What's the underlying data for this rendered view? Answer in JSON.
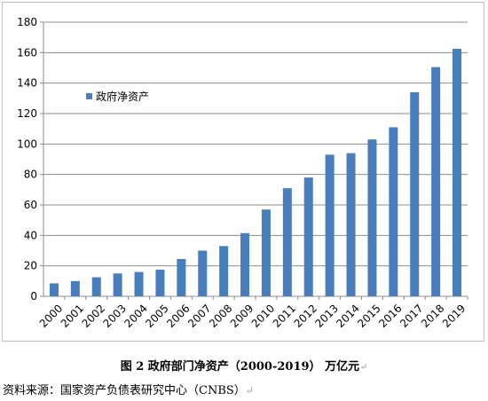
{
  "chart_data": {
    "type": "bar",
    "categories": [
      "2000",
      "2001",
      "2002",
      "2003",
      "2004",
      "2005",
      "2006",
      "2007",
      "2008",
      "2009",
      "2010",
      "2011",
      "2012",
      "2013",
      "2014",
      "2015",
      "2016",
      "2017",
      "2018",
      "2019"
    ],
    "series": [
      {
        "name": "政府净资产",
        "color": "#4a7ebb",
        "values": [
          8.5,
          10,
          12.5,
          15,
          16,
          17.5,
          24.5,
          30,
          33,
          41.5,
          57,
          71,
          78,
          93,
          94,
          103,
          111,
          134,
          150.5,
          162.5
        ]
      }
    ],
    "ylim": [
      0,
      180
    ],
    "yticks": [
      0,
      20,
      40,
      60,
      80,
      100,
      120,
      140,
      160,
      180
    ],
    "grid": true,
    "legend_position": "top-left"
  },
  "caption": "图 2  政府部门净资产（2000-2019）  万亿元",
  "source": "资料来源：国家资产负债表研究中心（CNBS）"
}
